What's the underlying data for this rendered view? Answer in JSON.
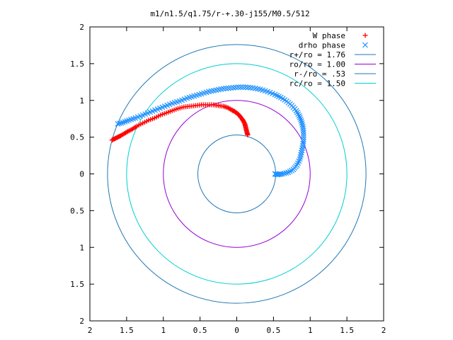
{
  "chart_data": {
    "type": "scatter",
    "title": "m1/n1.5/q1.75/r-+.30-j155/M0.5/512",
    "xlabel": "",
    "ylabel": "",
    "xlim": [
      2,
      -2
    ],
    "ylim": [
      -2,
      2
    ],
    "x_ticks": [
      {
        "value": 2,
        "label": "2"
      },
      {
        "value": 1.5,
        "label": "1.5"
      },
      {
        "value": 1,
        "label": "1"
      },
      {
        "value": 0.5,
        "label": "0.5"
      },
      {
        "value": 0,
        "label": "0"
      },
      {
        "value": -0.5,
        "label": "0.5"
      },
      {
        "value": -1,
        "label": "1"
      },
      {
        "value": -1.5,
        "label": "1.5"
      },
      {
        "value": -2,
        "label": "2"
      }
    ],
    "y_ticks": [
      {
        "value": 2,
        "label": "2"
      },
      {
        "value": 1.5,
        "label": "1.5"
      },
      {
        "value": 1,
        "label": "1"
      },
      {
        "value": 0.5,
        "label": "0.5"
      },
      {
        "value": 0,
        "label": "0"
      },
      {
        "value": -0.5,
        "label": "0.5"
      },
      {
        "value": -1,
        "label": "1"
      },
      {
        "value": -1.5,
        "label": "1.5"
      },
      {
        "value": -2,
        "label": "2"
      }
    ],
    "grid": false,
    "legend_position": "top-right",
    "series": [
      {
        "name": "W phase",
        "kind": "points",
        "marker": "+",
        "color": "#ff0000",
        "x": [
          -0.15,
          -0.14,
          -0.13,
          -0.12,
          -0.11,
          -0.09,
          -0.07,
          -0.04,
          -0.01,
          0.03,
          0.07,
          0.12,
          0.18,
          0.25,
          0.32,
          0.4,
          0.48,
          0.56,
          0.64,
          0.72,
          0.8,
          0.88,
          0.96,
          1.04,
          1.12,
          1.2,
          1.28,
          1.36,
          1.42,
          1.48,
          1.53,
          1.58,
          1.62,
          1.66,
          1.7
        ],
        "y": [
          0.53,
          0.56,
          0.6,
          0.64,
          0.68,
          0.72,
          0.75,
          0.79,
          0.82,
          0.85,
          0.87,
          0.9,
          0.92,
          0.93,
          0.94,
          0.94,
          0.94,
          0.93,
          0.92,
          0.91,
          0.89,
          0.86,
          0.83,
          0.8,
          0.76,
          0.73,
          0.69,
          0.65,
          0.61,
          0.58,
          0.55,
          0.52,
          0.5,
          0.48,
          0.46
        ]
      },
      {
        "name": "drho phase",
        "kind": "points",
        "marker": "x",
        "color": "#1e90ff",
        "x": [
          -0.52,
          -0.56,
          -0.62,
          -0.7,
          -0.77,
          -0.82,
          -0.86,
          -0.88,
          -0.9,
          -0.91,
          -0.91,
          -0.9,
          -0.88,
          -0.85,
          -0.81,
          -0.75,
          -0.68,
          -0.6,
          -0.52,
          -0.42,
          -0.32,
          -0.22,
          -0.12,
          -0.02,
          0.08,
          0.18,
          0.28,
          0.38,
          0.48,
          0.58,
          0.68,
          0.78,
          0.88,
          0.98,
          1.08,
          1.18,
          1.28,
          1.38,
          1.47,
          1.55,
          1.62
        ],
        "y": [
          0.0,
          -0.01,
          0.0,
          0.02,
          0.06,
          0.12,
          0.2,
          0.29,
          0.38,
          0.47,
          0.56,
          0.64,
          0.72,
          0.79,
          0.86,
          0.93,
          0.99,
          1.04,
          1.08,
          1.12,
          1.15,
          1.17,
          1.18,
          1.18,
          1.17,
          1.16,
          1.14,
          1.12,
          1.09,
          1.06,
          1.03,
          0.99,
          0.96,
          0.92,
          0.88,
          0.84,
          0.8,
          0.76,
          0.73,
          0.7,
          0.68
        ]
      },
      {
        "name": "r+/ro = 1.76",
        "kind": "circle",
        "radius": 1.76,
        "color": "#1f77b4"
      },
      {
        "name": "ro/ro = 1.00",
        "kind": "circle",
        "radius": 1.0,
        "color": "#9400d3"
      },
      {
        "name": "r-/ro = .53",
        "kind": "circle",
        "radius": 0.53,
        "color": "#1f77b4"
      },
      {
        "name": "rc/ro = 1.50",
        "kind": "circle",
        "radius": 1.5,
        "color": "#00ced1"
      }
    ]
  }
}
